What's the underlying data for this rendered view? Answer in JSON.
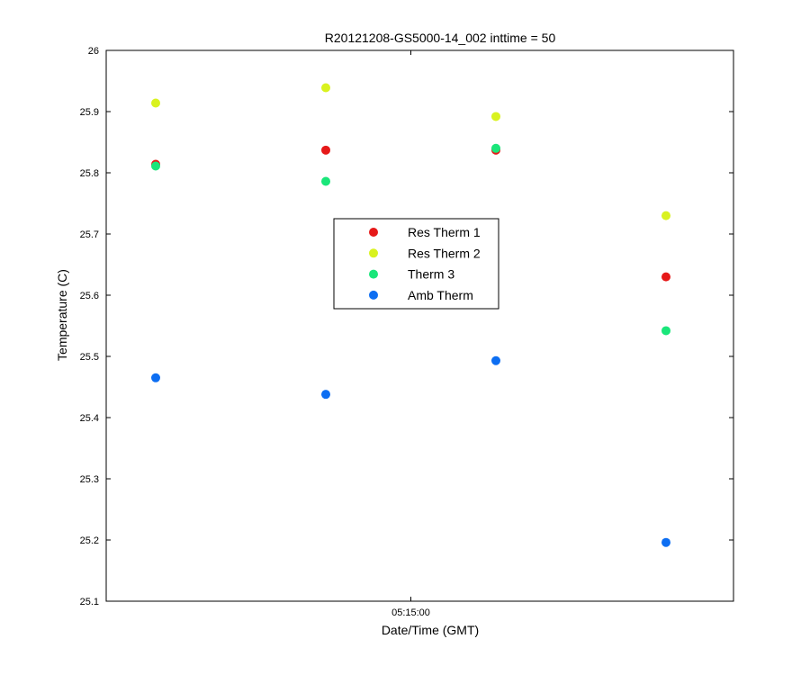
{
  "chart_data": {
    "type": "scatter",
    "title": "R20121208-GS5000-14_002 inttime = 50",
    "xlabel": "Date/Time (GMT)",
    "ylabel": "Temperature (C)",
    "ylim": [
      25.1,
      26.0
    ],
    "y_ticks": [
      "25.1",
      "25.2",
      "25.3",
      "25.4",
      "25.5",
      "25.6",
      "25.7",
      "25.8",
      "25.9",
      "26"
    ],
    "x_tick_label": "05:15:00",
    "x_tick_index": 1.5,
    "x": [
      0,
      1,
      2,
      3
    ],
    "grid": false,
    "legend_position": "center",
    "series": [
      {
        "name": "Res Therm 1",
        "color": "#e61919",
        "values": [
          25.814,
          25.837,
          25.837,
          25.63
        ]
      },
      {
        "name": "Res Therm 2",
        "color": "#d9f21f",
        "values": [
          25.914,
          25.939,
          25.892,
          25.73
        ]
      },
      {
        "name": "Therm 3",
        "color": "#1ae67a",
        "values": [
          25.811,
          25.786,
          25.84,
          25.542
        ]
      },
      {
        "name": "Amb Therm",
        "color": "#0d6ef2",
        "values": [
          25.465,
          25.438,
          25.493,
          25.196
        ]
      }
    ]
  }
}
